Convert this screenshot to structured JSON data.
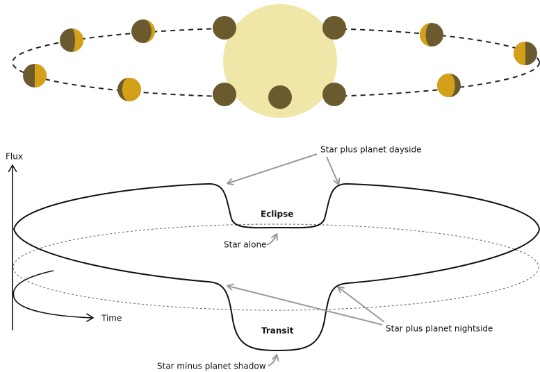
{
  "labels": {
    "flux": "Flux",
    "time": "Time",
    "dayside": "Star plus planet dayside",
    "eclipse": "Eclipse",
    "star_alone": "Star alone",
    "transit": "Transit",
    "shadow": "Star minus planet shadow",
    "nightside": "Star plus planet nightside"
  }
}
